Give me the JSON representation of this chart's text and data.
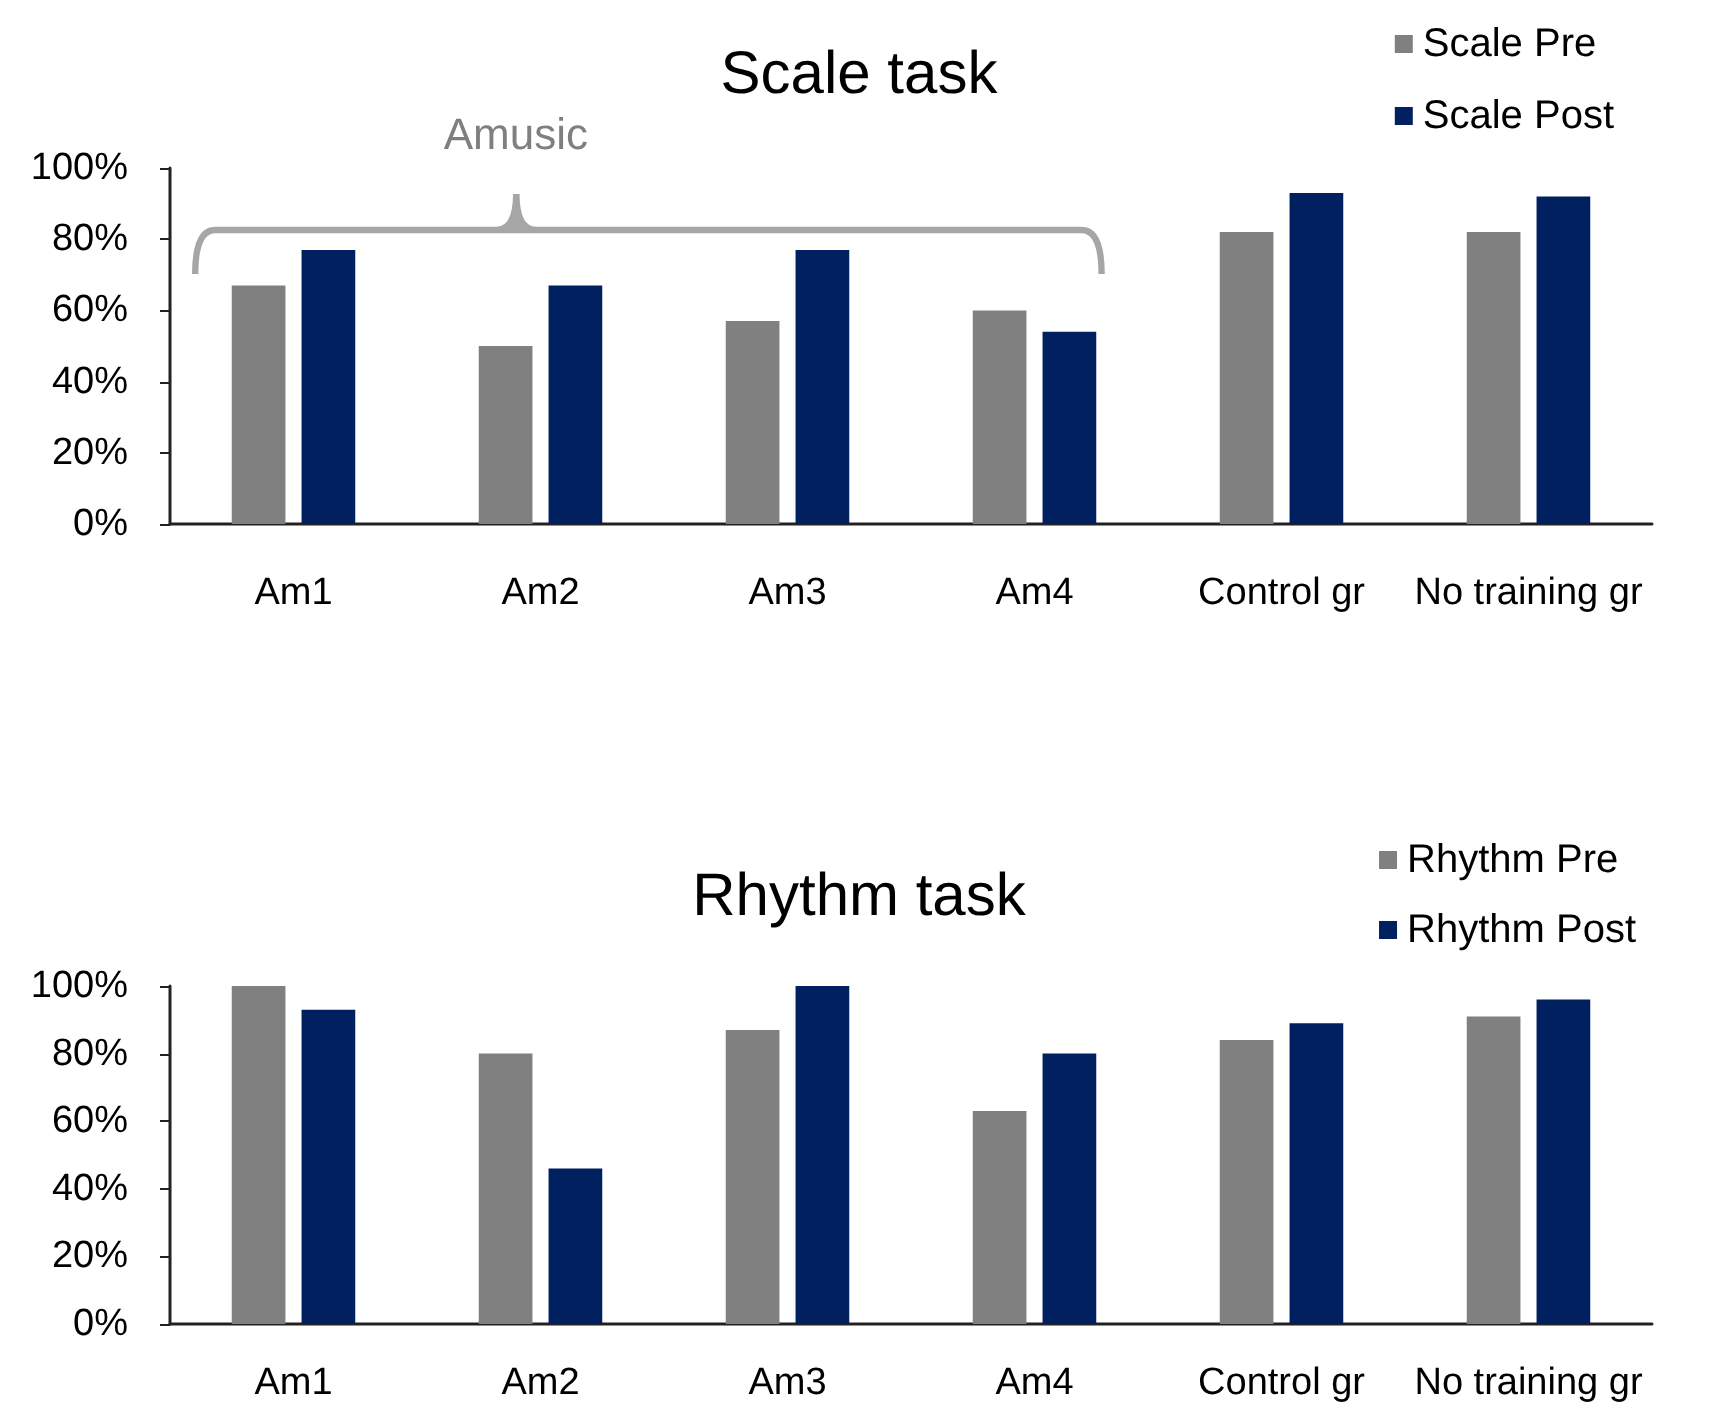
{
  "chart_data": [
    {
      "type": "bar",
      "title": "Scale task",
      "categories": [
        "Am1",
        "Am2",
        "Am3",
        "Am4",
        "Control gr",
        "No training gr"
      ],
      "series": [
        {
          "name": "Scale Pre",
          "color": "#808080",
          "values": [
            67,
            50,
            57,
            60,
            82,
            82
          ]
        },
        {
          "name": "Scale Post",
          "color": "#002060",
          "values": [
            77,
            67,
            77,
            54,
            93,
            92
          ]
        }
      ],
      "ylim": [
        0,
        100
      ],
      "yticks": [
        {
          "value": 0,
          "label": "0%"
        },
        {
          "value": 20,
          "label": "20%"
        },
        {
          "value": 40,
          "label": "40%"
        },
        {
          "value": 60,
          "label": "60%"
        },
        {
          "value": 80,
          "label": "80%"
        },
        {
          "value": 100,
          "label": "100%"
        }
      ],
      "legend": "top right",
      "annotations": [
        "Amusic"
      ]
    },
    {
      "type": "bar",
      "title": "Rhythm task",
      "categories": [
        "Am1",
        "Am2",
        "Am3",
        "Am4",
        "Control gr",
        "No training gr"
      ],
      "series": [
        {
          "name": "Rhythm Pre",
          "color": "#808080",
          "values": [
            100,
            80,
            87,
            63,
            84,
            91
          ]
        },
        {
          "name": "Rhythm Post",
          "color": "#002060",
          "values": [
            93,
            46,
            100,
            80,
            89,
            96
          ]
        }
      ],
      "ylim": [
        0,
        100
      ],
      "yticks": [
        {
          "value": 0,
          "label": "0%"
        },
        {
          "value": 20,
          "label": "20%"
        },
        {
          "value": 40,
          "label": "40%"
        },
        {
          "value": 60,
          "label": "60%"
        },
        {
          "value": 80,
          "label": "80%"
        },
        {
          "value": 100,
          "label": "100%"
        }
      ],
      "legend": "top right"
    }
  ]
}
